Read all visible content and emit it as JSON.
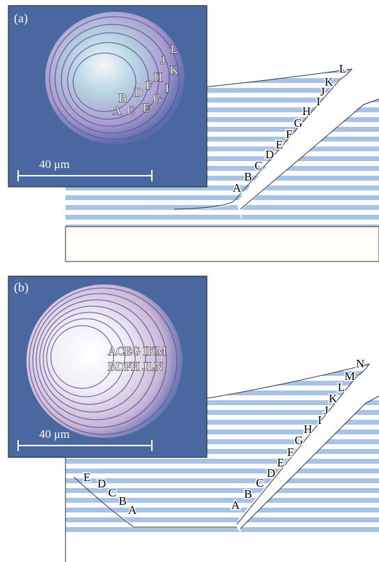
{
  "panels": [
    {
      "label": "(a)",
      "scale_bar": "40 μm",
      "micrograph_letters": [
        "L",
        "J",
        "K",
        "H",
        "F",
        "I",
        "D",
        "G",
        "B",
        "E",
        "A",
        "C"
      ],
      "diagram_letters": [
        "L",
        "K",
        "J",
        "I",
        "H",
        "G",
        "F",
        "E",
        "D",
        "C",
        "B",
        "A"
      ]
    },
    {
      "label": "(b)",
      "scale_bar": "40 μm",
      "micrograph_rows": [
        "ACEG IKM",
        "BDFH JLN"
      ],
      "diagram_letters": [
        "N",
        "M",
        "L",
        "K",
        "J",
        "I",
        "H",
        "G",
        "F",
        "E",
        "D",
        "C",
        "B",
        "A"
      ],
      "diagram_left_letters": [
        "E",
        "D",
        "C",
        "B",
        "A"
      ]
    }
  ]
}
